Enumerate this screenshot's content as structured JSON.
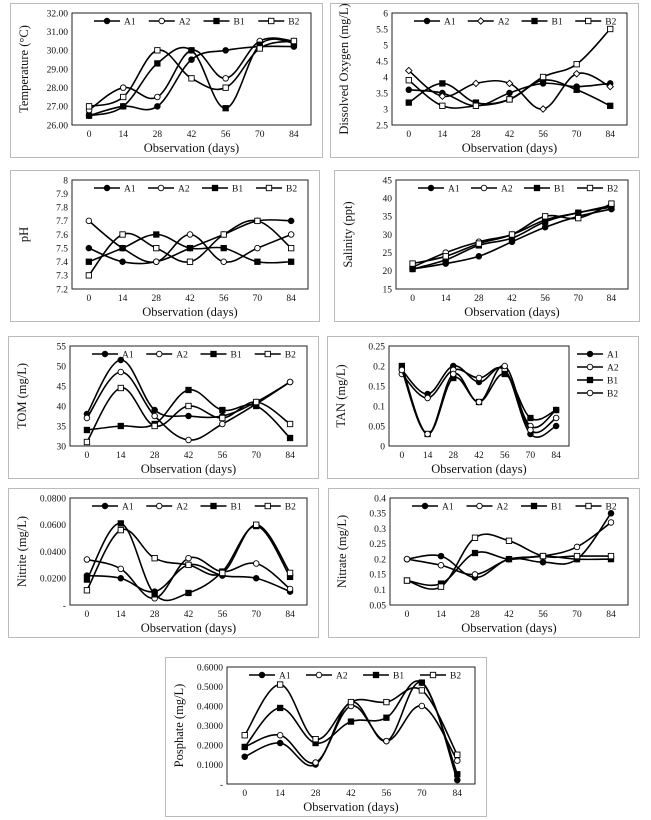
{
  "chart_data": [
    {
      "id": "temperature",
      "type": "line",
      "xlabel": "Observation (days)",
      "ylabel": "Temperature (°C)",
      "ylim": [
        26.0,
        32.0
      ],
      "ytick_labels": [
        "26.00",
        "27.00",
        "28.00",
        "29.00",
        "30.00",
        "31.00",
        "32.00"
      ],
      "x": [
        0,
        14,
        28,
        42,
        56,
        70,
        84
      ],
      "legend_position": "top",
      "series": [
        {
          "name": "A1",
          "marker": "filled-circle",
          "values": [
            26.5,
            27.0,
            27.0,
            29.5,
            30.0,
            30.2,
            30.2
          ]
        },
        {
          "name": "A2",
          "marker": "open-circle",
          "values": [
            26.8,
            28.0,
            27.5,
            30.0,
            28.5,
            30.5,
            30.5
          ]
        },
        {
          "name": "B1",
          "marker": "filled-square",
          "values": [
            26.5,
            27.0,
            29.3,
            30.0,
            26.9,
            30.3,
            30.4
          ]
        },
        {
          "name": "B2",
          "marker": "open-square",
          "values": [
            27.0,
            27.5,
            30.0,
            28.5,
            28.0,
            30.1,
            30.5
          ]
        }
      ]
    },
    {
      "id": "dissolved-oxygen",
      "type": "line",
      "xlabel": "Observation (days)",
      "ylabel": "Dissolved Oxygen (mg/L)",
      "ylim": [
        2.5,
        6.0
      ],
      "ytick_labels": [
        "2.5",
        "3",
        "3.5",
        "4",
        "4.5",
        "5",
        "5.5",
        "6"
      ],
      "x": [
        0,
        14,
        28,
        42,
        56,
        70,
        84
      ],
      "legend_position": "top",
      "series": [
        {
          "name": "A1",
          "marker": "filled-circle",
          "values": [
            3.6,
            3.5,
            3.1,
            3.5,
            3.8,
            3.7,
            3.8
          ]
        },
        {
          "name": "A2",
          "marker": "open-diamond",
          "values": [
            4.2,
            3.4,
            3.8,
            3.8,
            3.0,
            4.1,
            3.7
          ]
        },
        {
          "name": "B1",
          "marker": "filled-square",
          "values": [
            3.2,
            3.8,
            3.2,
            3.3,
            3.9,
            3.6,
            3.1
          ]
        },
        {
          "name": "B2",
          "marker": "open-square",
          "values": [
            3.9,
            3.1,
            3.1,
            3.3,
            4.0,
            4.4,
            5.5
          ]
        }
      ]
    },
    {
      "id": "ph",
      "type": "line",
      "xlabel": "Observation (days)",
      "ylabel": "pH",
      "ylim": [
        7.2,
        8.0
      ],
      "ytick_labels": [
        "7.2",
        "7.3",
        "7.4",
        "7.5",
        "7.6",
        "7.7",
        "7.8",
        "7.9",
        "8"
      ],
      "x": [
        0,
        14,
        28,
        42,
        56,
        70,
        84
      ],
      "legend_position": "top",
      "series": [
        {
          "name": "A1",
          "marker": "filled-circle",
          "values": [
            7.5,
            7.4,
            7.4,
            7.5,
            7.6,
            7.7,
            7.7
          ]
        },
        {
          "name": "A2",
          "marker": "open-circle",
          "values": [
            7.7,
            7.5,
            7.4,
            7.6,
            7.4,
            7.5,
            7.6
          ]
        },
        {
          "name": "B1",
          "marker": "filled-square",
          "values": [
            7.4,
            7.5,
            7.6,
            7.5,
            7.5,
            7.4,
            7.4
          ]
        },
        {
          "name": "B2",
          "marker": "open-square",
          "values": [
            7.3,
            7.6,
            7.5,
            7.4,
            7.6,
            7.7,
            7.5
          ]
        }
      ]
    },
    {
      "id": "salinity",
      "type": "line",
      "xlabel": "Observation (days)",
      "ylabel": "Salinity (ppt)",
      "ylim": [
        15,
        45
      ],
      "ytick_labels": [
        "15",
        "20",
        "25",
        "30",
        "35",
        "40",
        "45"
      ],
      "x": [
        0,
        14,
        28,
        42,
        56,
        70,
        84
      ],
      "legend_position": "top",
      "series": [
        {
          "name": "A1",
          "marker": "filled-circle",
          "values": [
            20.5,
            22.0,
            24.0,
            28.0,
            32.0,
            35.0,
            37.0
          ]
        },
        {
          "name": "A2",
          "marker": "open-circle",
          "values": [
            21.0,
            25.0,
            28.0,
            30.0,
            34.0,
            36.0,
            38.0
          ]
        },
        {
          "name": "B1",
          "marker": "filled-square",
          "values": [
            20.5,
            23.0,
            27.0,
            29.0,
            33.5,
            36.0,
            37.5
          ]
        },
        {
          "name": "B2",
          "marker": "open-square",
          "values": [
            22.0,
            24.0,
            27.5,
            30.0,
            35.0,
            34.5,
            38.5
          ]
        }
      ]
    },
    {
      "id": "tom",
      "type": "line",
      "xlabel": "Observation (days)",
      "ylabel": "TOM (mg/L)",
      "ylim": [
        30,
        55
      ],
      "ytick_labels": [
        "30",
        "35",
        "40",
        "45",
        "50",
        "55"
      ],
      "x": [
        0,
        14,
        28,
        42,
        56,
        70,
        84
      ],
      "legend_position": "top",
      "series": [
        {
          "name": "A1",
          "marker": "filled-circle",
          "values": [
            38.0,
            51.5,
            39.0,
            37.5,
            37.5,
            41.0,
            46.0
          ]
        },
        {
          "name": "A2",
          "marker": "open-circle",
          "values": [
            37.0,
            48.5,
            37.5,
            31.5,
            35.5,
            40.5,
            46.0
          ]
        },
        {
          "name": "B1",
          "marker": "filled-square",
          "values": [
            34.0,
            35.0,
            35.5,
            44.0,
            39.0,
            40.0,
            32.0
          ]
        },
        {
          "name": "B2",
          "marker": "open-square",
          "values": [
            31.0,
            44.5,
            35.0,
            40.0,
            37.0,
            41.0,
            35.5
          ]
        }
      ]
    },
    {
      "id": "tan",
      "type": "line",
      "xlabel": "Observation (days)",
      "ylabel": "TAN (mg/L)",
      "ylim": [
        0,
        0.25
      ],
      "ytick_labels": [
        "0",
        "0.05",
        "0.1",
        "0.15",
        "0.2",
        "0.25"
      ],
      "x": [
        0,
        14,
        28,
        42,
        56,
        70,
        84
      ],
      "legend_position": "right",
      "series": [
        {
          "name": "A1",
          "marker": "filled-circle",
          "values": [
            0.19,
            0.13,
            0.2,
            0.16,
            0.19,
            0.03,
            0.05
          ]
        },
        {
          "name": "A2",
          "marker": "open-circle",
          "values": [
            0.18,
            0.12,
            0.19,
            0.17,
            0.19,
            0.05,
            0.09
          ]
        },
        {
          "name": "B1",
          "marker": "filled-square",
          "values": [
            0.2,
            0.03,
            0.17,
            0.11,
            0.18,
            0.07,
            0.09
          ]
        },
        {
          "name": "B2",
          "marker": "open-circle",
          "values": [
            0.19,
            0.03,
            0.18,
            0.11,
            0.2,
            0.04,
            0.07
          ]
        }
      ]
    },
    {
      "id": "nitrite",
      "type": "line",
      "xlabel": "Observation (days)",
      "ylabel": "Nitrite (mg/L)",
      "ylim": [
        0,
        0.08
      ],
      "ytick_labels": [
        "-",
        "0.0200",
        "0.0400",
        "0.0600",
        "0.0800"
      ],
      "x": [
        0,
        14,
        28,
        42,
        56,
        70,
        84
      ],
      "legend_position": "top",
      "series": [
        {
          "name": "A1",
          "marker": "filled-circle",
          "values": [
            0.022,
            0.02,
            0.01,
            0.03,
            0.022,
            0.02,
            0.01
          ]
        },
        {
          "name": "A2",
          "marker": "open-circle",
          "values": [
            0.034,
            0.027,
            0.005,
            0.035,
            0.025,
            0.031,
            0.012
          ]
        },
        {
          "name": "B1",
          "marker": "filled-square",
          "values": [
            0.019,
            0.061,
            0.008,
            0.009,
            0.025,
            0.059,
            0.021
          ]
        },
        {
          "name": "B2",
          "marker": "open-square",
          "values": [
            0.011,
            0.056,
            0.035,
            0.03,
            0.024,
            0.06,
            0.024
          ]
        }
      ]
    },
    {
      "id": "nitrate",
      "type": "line",
      "xlabel": "Observation (days)",
      "ylabel": "Nitrate (mg/L)",
      "ylim": [
        0.05,
        0.4
      ],
      "ytick_labels": [
        "0.05",
        "0.1",
        "0.15",
        "0.2",
        "0.25",
        "0.3",
        "0.35",
        "0.4"
      ],
      "x": [
        0,
        14,
        28,
        42,
        56,
        70,
        84
      ],
      "legend_position": "top",
      "series": [
        {
          "name": "A1",
          "marker": "filled-circle",
          "values": [
            0.2,
            0.21,
            0.14,
            0.2,
            0.19,
            0.2,
            0.35
          ]
        },
        {
          "name": "A2",
          "marker": "open-circle",
          "values": [
            0.2,
            0.18,
            0.15,
            0.2,
            0.21,
            0.24,
            0.32
          ]
        },
        {
          "name": "B1",
          "marker": "filled-square",
          "values": [
            0.13,
            0.12,
            0.22,
            0.2,
            0.21,
            0.2,
            0.2
          ]
        },
        {
          "name": "B2",
          "marker": "open-square",
          "values": [
            0.13,
            0.11,
            0.27,
            0.26,
            0.21,
            0.21,
            0.21
          ]
        }
      ]
    },
    {
      "id": "phosphate",
      "type": "line",
      "xlabel": "Observation (days)",
      "ylabel": "Posphate (mg/L)",
      "ylim": [
        0,
        0.6
      ],
      "ytick_labels": [
        "-",
        "0.1000",
        "0.2000",
        "0.3000",
        "0.4000",
        "0.5000",
        "0.6000"
      ],
      "x": [
        0,
        14,
        28,
        42,
        56,
        70,
        84
      ],
      "legend_position": "top",
      "series": [
        {
          "name": "A1",
          "marker": "filled-circle",
          "values": [
            0.14,
            0.21,
            0.1,
            0.42,
            0.22,
            0.52,
            0.02
          ]
        },
        {
          "name": "A2",
          "marker": "open-circle",
          "values": [
            0.19,
            0.25,
            0.11,
            0.4,
            0.22,
            0.4,
            0.12
          ]
        },
        {
          "name": "B1",
          "marker": "filled-square",
          "values": [
            0.19,
            0.39,
            0.21,
            0.32,
            0.34,
            0.52,
            0.05
          ]
        },
        {
          "name": "B2",
          "marker": "open-square",
          "values": [
            0.25,
            0.51,
            0.23,
            0.42,
            0.42,
            0.48,
            0.15
          ]
        }
      ]
    }
  ]
}
